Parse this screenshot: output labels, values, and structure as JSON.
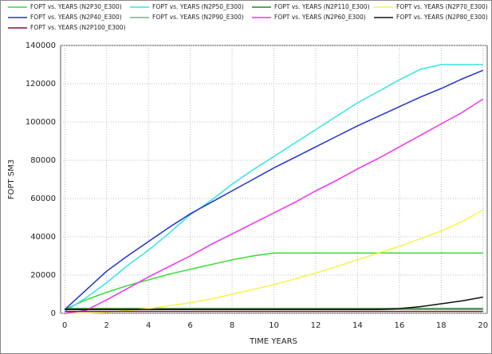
{
  "chart_data": {
    "type": "line",
    "x_label": "TIME YEARS",
    "y_label": "FOPT SM3",
    "x": [
      0,
      1,
      2,
      3,
      4,
      5,
      6,
      7,
      8,
      9,
      10,
      11,
      12,
      13,
      14,
      15,
      16,
      17,
      18,
      19,
      20
    ],
    "xlim": [
      -0.2,
      20.2
    ],
    "xticks": [
      0,
      2,
      4,
      6,
      8,
      10,
      12,
      14,
      16,
      18,
      20
    ],
    "ylim": [
      0,
      140000
    ],
    "yticks": [
      0,
      20000,
      40000,
      60000,
      80000,
      100000,
      120000,
      140000
    ],
    "grid": true,
    "series": [
      {
        "name": "FOPT vs. YEARS (N2P30_E300)",
        "color": "#33dd33",
        "values": [
          2000,
          7000,
          11000,
          14500,
          17500,
          20500,
          23000,
          25500,
          28000,
          30000,
          31500,
          31500,
          31500,
          31500,
          31500,
          31500,
          31500,
          31500,
          31500,
          31500,
          31500
        ]
      },
      {
        "name": "FOPT vs. YEARS (N2P50_E300)",
        "color": "#33e5e5",
        "values": [
          1000,
          8000,
          16000,
          25000,
          33000,
          42000,
          51500,
          59000,
          67500,
          75000,
          82000,
          89000,
          96000,
          103000,
          110000,
          116000,
          122000,
          127500,
          130000,
          130000,
          130000
        ]
      },
      {
        "name": "FOPT vs. YEARS (N2P110_E300)",
        "color": "#228822",
        "values": [
          2500,
          2500,
          2500,
          2500,
          2500,
          2500,
          2500,
          2500,
          2500,
          2500,
          2500,
          2500,
          2500,
          2500,
          2500,
          2500,
          2500,
          2500,
          2500,
          2500,
          2500
        ]
      },
      {
        "name": "FOPT vs. YEARS (N2P70_E300)",
        "color": "#f5f545",
        "values": [
          0,
          0,
          500,
          1500,
          2500,
          4000,
          5500,
          7500,
          10000,
          12500,
          15000,
          18000,
          21000,
          24500,
          28000,
          31500,
          35000,
          39000,
          43000,
          48000,
          54000
        ]
      },
      {
        "name": "FOPT vs. YEARS (N2P40_E300)",
        "color": "#2233cc",
        "values": [
          2000,
          12000,
          22000,
          30000,
          37500,
          45000,
          52000,
          58000,
          64000,
          70000,
          76000,
          81500,
          87000,
          92500,
          98000,
          103000,
          108000,
          113000,
          117500,
          122500,
          127000
        ]
      },
      {
        "name": "FOPT vs. YEARS (N2P90_E300)",
        "color": "#88aa88",
        "values": [
          2000,
          2000,
          2000,
          2000,
          2000,
          2000,
          2000,
          2000,
          2000,
          2000,
          2000,
          2000,
          2000,
          2000,
          2000,
          2000,
          2000,
          2000,
          2000,
          2000,
          2000
        ]
      },
      {
        "name": "FOPT vs. YEARS (N2P60_E300)",
        "color": "#ee33ee",
        "values": [
          0,
          1500,
          7000,
          13000,
          19000,
          24500,
          30000,
          36000,
          41500,
          47000,
          52500,
          58000,
          64000,
          69500,
          75500,
          81000,
          87000,
          93000,
          99000,
          105000,
          112000
        ]
      },
      {
        "name": "FOPT vs. YEARS (N2P80_E300)",
        "color": "#111111",
        "values": [
          2000,
          2000,
          2000,
          2000,
          2000,
          2000,
          2000,
          2000,
          2000,
          2000,
          2000,
          2000,
          2000,
          2000,
          2000,
          2000,
          2500,
          3500,
          5000,
          6500,
          8500
        ]
      },
      {
        "name": "FOPT vs. YEARS (N2P100_E300)",
        "color": "#881133",
        "values": [
          1000,
          1000,
          1000,
          1000,
          1000,
          1000,
          1000,
          1000,
          1000,
          1000,
          1000,
          1000,
          1000,
          1000,
          1000,
          1000,
          1000,
          1000,
          1000,
          1000,
          1000
        ]
      }
    ]
  }
}
